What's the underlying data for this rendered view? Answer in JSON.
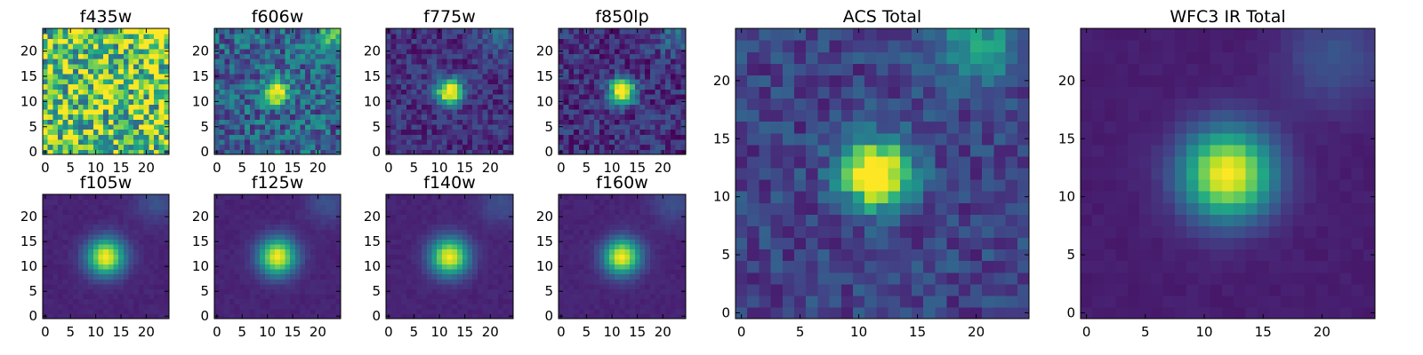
{
  "chart_data": [
    {
      "type": "heatmap",
      "title": "f435w",
      "grid_size": 25,
      "xlim": [
        0,
        24
      ],
      "ylim": [
        0,
        24
      ],
      "xticks": [
        0,
        5,
        10,
        15,
        20
      ],
      "yticks": [
        0,
        5,
        10,
        15,
        20
      ],
      "source": {
        "x": 12,
        "y": 12,
        "peak": 0.15,
        "sigma": 2.2
      },
      "background": 0.72,
      "noise": 0.4,
      "feature": {
        "x": 22,
        "y": 23,
        "amp": 0.3,
        "sigma": 2.5
      },
      "vmin": 0,
      "vmax": 1
    },
    {
      "type": "heatmap",
      "title": "f606w",
      "grid_size": 25,
      "xlim": [
        0,
        24
      ],
      "ylim": [
        0,
        24
      ],
      "xticks": [
        0,
        5,
        10,
        15,
        20
      ],
      "yticks": [
        0,
        5,
        10,
        15,
        20
      ],
      "source": {
        "x": 12,
        "y": 12,
        "peak": 0.85,
        "sigma": 1.6
      },
      "background": 0.32,
      "noise": 0.22,
      "feature": {
        "x": 23,
        "y": 23,
        "amp": 0.35,
        "sigma": 2.5
      },
      "vmin": 0,
      "vmax": 1
    },
    {
      "type": "heatmap",
      "title": "f775w",
      "grid_size": 25,
      "xlim": [
        0,
        24
      ],
      "ylim": [
        0,
        24
      ],
      "xticks": [
        0,
        5,
        10,
        15,
        20
      ],
      "yticks": [
        0,
        5,
        10,
        15,
        20
      ],
      "source": {
        "x": 12,
        "y": 12,
        "peak": 0.95,
        "sigma": 1.8
      },
      "background": 0.14,
      "noise": 0.12,
      "feature": {
        "x": 22,
        "y": 23,
        "amp": 0.2,
        "sigma": 2.5
      },
      "vmin": 0,
      "vmax": 1
    },
    {
      "type": "heatmap",
      "title": "f850lp",
      "grid_size": 25,
      "xlim": [
        0,
        24
      ],
      "ylim": [
        0,
        24
      ],
      "xticks": [
        0,
        5,
        10,
        15,
        20
      ],
      "yticks": [
        0,
        5,
        10,
        15,
        20
      ],
      "source": {
        "x": 12,
        "y": 12,
        "peak": 0.95,
        "sigma": 1.8
      },
      "background": 0.14,
      "noise": 0.14,
      "feature": {
        "x": 22,
        "y": 23,
        "amp": 0.2,
        "sigma": 2.5
      },
      "vmin": 0,
      "vmax": 1
    },
    {
      "type": "heatmap",
      "title": "f105w",
      "grid_size": 25,
      "xlim": [
        0,
        24
      ],
      "ylim": [
        0,
        24
      ],
      "xticks": [
        0,
        5,
        10,
        15,
        20
      ],
      "yticks": [
        0,
        5,
        10,
        15,
        20
      ],
      "source": {
        "x": 12,
        "y": 12,
        "peak": 0.9,
        "sigma": 2.6
      },
      "background": 0.1,
      "noise": 0.02,
      "feature": {
        "x": 22,
        "y": 23,
        "amp": 0.15,
        "sigma": 3
      },
      "vmin": 0,
      "vmax": 1
    },
    {
      "type": "heatmap",
      "title": "f125w",
      "grid_size": 25,
      "xlim": [
        0,
        24
      ],
      "ylim": [
        0,
        24
      ],
      "xticks": [
        0,
        5,
        10,
        15,
        20
      ],
      "yticks": [
        0,
        5,
        10,
        15,
        20
      ],
      "source": {
        "x": 12,
        "y": 12,
        "peak": 0.9,
        "sigma": 2.6
      },
      "background": 0.1,
      "noise": 0.02,
      "feature": {
        "x": 22,
        "y": 23,
        "amp": 0.15,
        "sigma": 3
      },
      "vmin": 0,
      "vmax": 1
    },
    {
      "type": "heatmap",
      "title": "f140w",
      "grid_size": 25,
      "xlim": [
        0,
        24
      ],
      "ylim": [
        0,
        24
      ],
      "xticks": [
        0,
        5,
        10,
        15,
        20
      ],
      "yticks": [
        0,
        5,
        10,
        15,
        20
      ],
      "source": {
        "x": 12,
        "y": 12,
        "peak": 0.9,
        "sigma": 2.6
      },
      "background": 0.1,
      "noise": 0.02,
      "feature": {
        "x": 22,
        "y": 23,
        "amp": 0.15,
        "sigma": 3
      },
      "vmin": 0,
      "vmax": 1
    },
    {
      "type": "heatmap",
      "title": "f160w",
      "grid_size": 25,
      "xlim": [
        0,
        24
      ],
      "ylim": [
        0,
        24
      ],
      "xticks": [
        0,
        5,
        10,
        15,
        20
      ],
      "yticks": [
        0,
        5,
        10,
        15,
        20
      ],
      "source": {
        "x": 12,
        "y": 12,
        "peak": 0.9,
        "sigma": 2.5
      },
      "background": 0.1,
      "noise": 0.02,
      "feature": {
        "x": 22,
        "y": 23,
        "amp": 0.15,
        "sigma": 3
      },
      "vmin": 0,
      "vmax": 1
    },
    {
      "type": "heatmap",
      "title": "ACS Total",
      "grid_size": 25,
      "xlim": [
        0,
        24
      ],
      "ylim": [
        0,
        24
      ],
      "xticks": [
        0,
        5,
        10,
        15,
        20
      ],
      "yticks": [
        0,
        5,
        10,
        15,
        20
      ],
      "source": {
        "x": 11.5,
        "y": 12,
        "peak": 1,
        "sigma": 2
      },
      "background": 0.2,
      "noise": 0.12,
      "feature": {
        "x": 20,
        "y": 23,
        "amp": 0.4,
        "sigma": 2.2
      },
      "vmin": 0,
      "vmax": 1
    },
    {
      "type": "heatmap",
      "title": "WFC3 IR Total",
      "grid_size": 25,
      "xlim": [
        0,
        24
      ],
      "ylim": [
        0,
        24
      ],
      "xticks": [
        0,
        5,
        10,
        15,
        20
      ],
      "yticks": [
        0,
        5,
        10,
        15,
        20
      ],
      "source": {
        "x": 12,
        "y": 12,
        "peak": 0.95,
        "sigma": 2.7
      },
      "background": 0.08,
      "noise": 0.015,
      "feature": {
        "x": 21,
        "y": 22,
        "amp": 0.18,
        "sigma": 3
      },
      "vmin": 0,
      "vmax": 1
    }
  ],
  "colormap": [
    "#440154",
    "#482475",
    "#414487",
    "#355f8d",
    "#2a788e",
    "#21918c",
    "#22a884",
    "#44bf70",
    "#7ad151",
    "#bddf26",
    "#fde725"
  ]
}
